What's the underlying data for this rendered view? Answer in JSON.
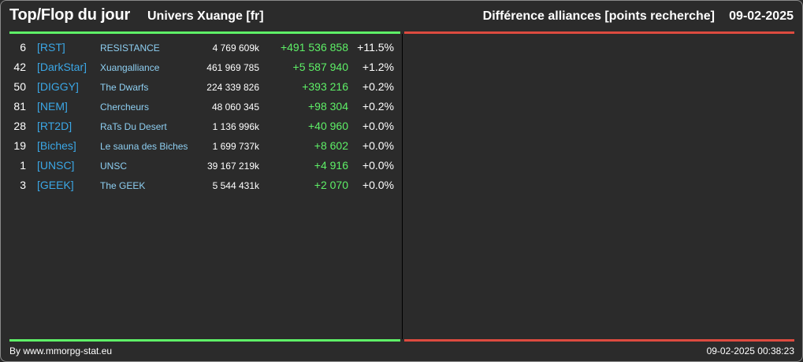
{
  "header": {
    "title": "Top/Flop du jour",
    "subtitle": "Univers Xuange [fr]",
    "right_title": "Différence alliances [points recherche]",
    "date": "09-02-2025"
  },
  "rows": [
    {
      "rank": "6",
      "tag": "[RST]",
      "name": "RESISTANCE",
      "points": "4 769 609k",
      "diff": "+491 536 858",
      "pct": "+11.5%"
    },
    {
      "rank": "42",
      "tag": "[DarkStar]",
      "name": "Xuangalliance",
      "points": "461 969 785",
      "diff": "+5 587 940",
      "pct": "+1.2%"
    },
    {
      "rank": "50",
      "tag": "[DIGGY]",
      "name": "The Dwarfs",
      "points": "224 339 826",
      "diff": "+393 216",
      "pct": "+0.2%"
    },
    {
      "rank": "81",
      "tag": "[NEM]",
      "name": "Chercheurs",
      "points": "48 060 345",
      "diff": "+98 304",
      "pct": "+0.2%"
    },
    {
      "rank": "28",
      "tag": "[RT2D]",
      "name": "RaTs Du Desert",
      "points": "1 136 996k",
      "diff": "+40 960",
      "pct": "+0.0%"
    },
    {
      "rank": "19",
      "tag": "[Biches]",
      "name": "Le sauna des Biches",
      "points": "1 699 737k",
      "diff": "+8 602",
      "pct": "+0.0%"
    },
    {
      "rank": "1",
      "tag": "[UNSC]",
      "name": "UNSC",
      "points": "39 167 219k",
      "diff": "+4 916",
      "pct": "+0.0%"
    },
    {
      "rank": "3",
      "tag": "[GEEK]",
      "name": "The GEEK",
      "points": "5 544 431k",
      "diff": "+2 070",
      "pct": "+0.0%"
    }
  ],
  "footer": {
    "credit": "By www.mmorpg-stat.eu",
    "timestamp": "09-02-2025 00:38:23"
  },
  "colors": {
    "top_accent": "#5ef067",
    "flop_accent": "#dd4b3f",
    "tag": "#3ba7e6",
    "name": "#8ecff2"
  }
}
